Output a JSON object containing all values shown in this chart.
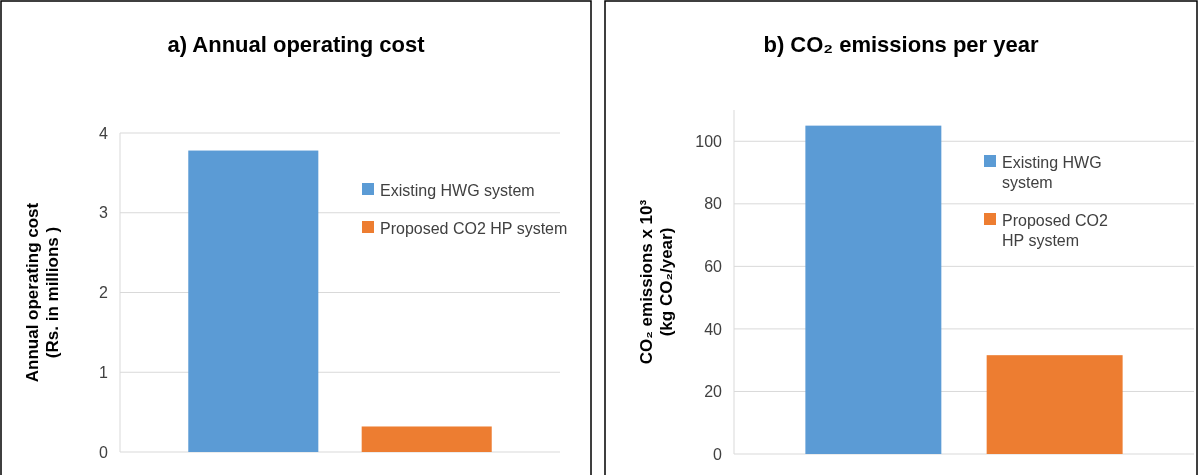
{
  "chart_data": [
    {
      "type": "bar",
      "title": "a) Annual operating cost",
      "ylabel": "Annual operating cost\n(Rs. in millions )",
      "categories": [
        null
      ],
      "series": [
        {
          "name": "Existing HWG system",
          "color": "#5b9bd5",
          "values": [
            3.78
          ]
        },
        {
          "name": "Proposed CO2 HP system",
          "color": "#ed7d31",
          "values": [
            0.32
          ]
        }
      ],
      "ylim": [
        0,
        4
      ],
      "yticks": [
        0,
        1,
        2,
        3,
        4
      ],
      "grid": "y",
      "legend": "right"
    },
    {
      "type": "bar",
      "title": "b) CO₂ emissions per year",
      "ylabel": "CO₂ emissions x 10³\n(kg CO₂/year)",
      "categories": [
        null
      ],
      "series": [
        {
          "name": "Existing HWG system",
          "color": "#5b9bd5",
          "values": [
            105
          ]
        },
        {
          "name": "Proposed CO2 HP system",
          "color": "#ed7d31",
          "values": [
            31.6
          ]
        }
      ],
      "ylim": [
        0,
        110
      ],
      "yticks": [
        0,
        20,
        40,
        60,
        80,
        100
      ],
      "grid": "y",
      "legend": "right"
    }
  ]
}
